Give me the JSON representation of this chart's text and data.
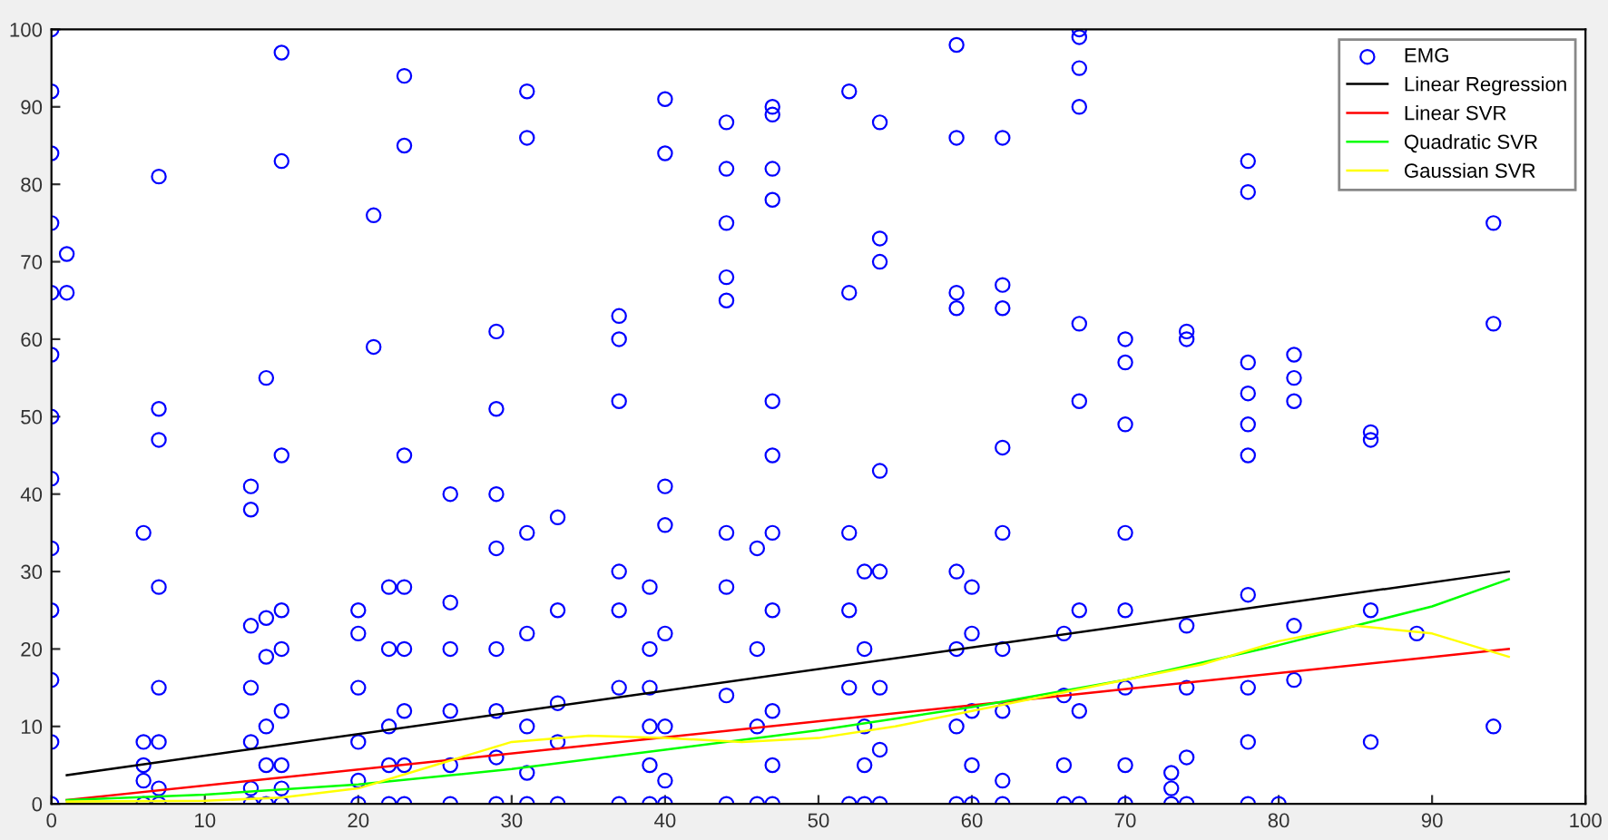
{
  "chart_data": {
    "type": "scatter",
    "xlim": [
      0,
      100
    ],
    "ylim": [
      0,
      100
    ],
    "xticks": [
      0,
      10,
      20,
      30,
      40,
      50,
      60,
      70,
      80,
      90,
      100
    ],
    "yticks": [
      0,
      10,
      20,
      30,
      40,
      50,
      60,
      70,
      80,
      90,
      100
    ],
    "grid": false,
    "legend": "top right",
    "series": [
      {
        "name": "EMG",
        "color": "#0000ff",
        "marker": "circle",
        "x": [
          0,
          0,
          0,
          0,
          0,
          0,
          0,
          0,
          0,
          0,
          0,
          0,
          0,
          1,
          1,
          6,
          6,
          6,
          6,
          6,
          7,
          7,
          7,
          7,
          7,
          7,
          7,
          7,
          13,
          13,
          13,
          13,
          13,
          13,
          13,
          14,
          14,
          14,
          14,
          14,
          14,
          15,
          15,
          15,
          15,
          15,
          15,
          15,
          15,
          15,
          20,
          20,
          20,
          20,
          20,
          20,
          21,
          21,
          22,
          22,
          22,
          22,
          22,
          23,
          23,
          23,
          23,
          23,
          23,
          23,
          23,
          26,
          26,
          26,
          26,
          26,
          26,
          29,
          29,
          29,
          29,
          29,
          29,
          29,
          29,
          31,
          31,
          31,
          31,
          31,
          31,
          31,
          33,
          33,
          33,
          33,
          33,
          37,
          37,
          37,
          37,
          37,
          37,
          37,
          39,
          39,
          39,
          39,
          39,
          39,
          40,
          40,
          40,
          40,
          40,
          40,
          40,
          40,
          44,
          44,
          44,
          44,
          44,
          44,
          44,
          44,
          44,
          46,
          46,
          46,
          46,
          47,
          47,
          47,
          47,
          47,
          47,
          47,
          47,
          47,
          47,
          47,
          52,
          52,
          52,
          52,
          52,
          52,
          53,
          53,
          53,
          53,
          53,
          54,
          54,
          54,
          54,
          54,
          54,
          54,
          54,
          59,
          59,
          59,
          59,
          59,
          59,
          59,
          59,
          60,
          60,
          60,
          60,
          60,
          62,
          62,
          62,
          62,
          62,
          62,
          62,
          62,
          62,
          66,
          66,
          66,
          66,
          67,
          67,
          67,
          67,
          67,
          67,
          67,
          67,
          67,
          70,
          70,
          70,
          70,
          70,
          70,
          70,
          70,
          73,
          73,
          73,
          74,
          74,
          74,
          74,
          74,
          74,
          78,
          78,
          78,
          78,
          78,
          78,
          78,
          78,
          78,
          78,
          80,
          81,
          81,
          81,
          81,
          81,
          86,
          86,
          86,
          86,
          89,
          94,
          94,
          94
        ],
        "values": [
          0,
          8,
          16,
          25,
          33,
          42,
          50,
          58,
          66,
          75,
          84,
          92,
          100,
          71,
          66,
          0,
          3,
          5,
          8,
          35,
          0,
          2,
          8,
          15,
          28,
          47,
          51,
          81,
          0,
          2,
          8,
          15,
          23,
          38,
          41,
          0,
          5,
          10,
          19,
          24,
          55,
          0,
          2,
          5,
          12,
          20,
          25,
          45,
          83,
          97,
          0,
          3,
          8,
          15,
          22,
          25,
          76,
          59,
          0,
          5,
          10,
          20,
          28,
          0,
          5,
          12,
          20,
          28,
          45,
          85,
          94,
          0,
          5,
          12,
          20,
          26,
          40,
          0,
          6,
          12,
          20,
          33,
          40,
          51,
          61,
          0,
          4,
          10,
          22,
          35,
          86,
          92,
          0,
          8,
          13,
          25,
          37,
          0,
          15,
          25,
          30,
          52,
          60,
          63,
          0,
          5,
          10,
          15,
          20,
          28,
          0,
          3,
          10,
          22,
          36,
          41,
          84,
          91,
          0,
          14,
          28,
          35,
          65,
          68,
          75,
          82,
          88,
          0,
          10,
          20,
          33,
          0,
          5,
          12,
          25,
          35,
          45,
          52,
          78,
          82,
          89,
          90,
          0,
          15,
          25,
          35,
          66,
          92,
          0,
          5,
          10,
          20,
          30,
          0,
          7,
          15,
          30,
          43,
          70,
          73,
          88,
          0,
          10,
          20,
          30,
          64,
          66,
          86,
          98,
          0,
          5,
          12,
          22,
          28,
          0,
          3,
          12,
          20,
          35,
          46,
          64,
          67,
          86,
          0,
          5,
          14,
          22,
          0,
          12,
          25,
          52,
          62,
          90,
          95,
          99,
          100,
          0,
          5,
          15,
          25,
          35,
          49,
          57,
          60,
          0,
          2,
          4,
          0,
          6,
          15,
          23,
          60,
          61,
          0,
          8,
          15,
          27,
          45,
          49,
          53,
          57,
          79,
          83,
          0,
          16,
          23,
          52,
          55,
          58,
          8,
          25,
          47,
          48,
          22,
          10,
          62,
          75
        ]
      },
      {
        "name": "Linear Regression",
        "type": "line",
        "color": "#000000",
        "marker": "none",
        "x": [
          1,
          95
        ],
        "values": [
          3.7,
          30
        ]
      },
      {
        "name": "Linear SVR",
        "type": "line",
        "color": "#ff0000",
        "marker": "none",
        "x": [
          1,
          95
        ],
        "values": [
          0.5,
          20
        ]
      },
      {
        "name": "Quadratic SVR",
        "type": "line",
        "color": "#00ff00",
        "marker": "none",
        "x": [
          1,
          10,
          20,
          30,
          40,
          50,
          60,
          70,
          80,
          90,
          95
        ],
        "values": [
          0.5,
          1.2,
          2.5,
          4.5,
          7,
          9.5,
          12.5,
          16,
          20.5,
          25.5,
          29
        ]
      },
      {
        "name": "Gaussian SVR",
        "type": "line",
        "color": "#ffff00",
        "marker": "none",
        "x": [
          1,
          10,
          15,
          20,
          25,
          30,
          35,
          40,
          45,
          50,
          55,
          60,
          65,
          70,
          75,
          80,
          85,
          90,
          95
        ],
        "values": [
          0.3,
          0.4,
          0.8,
          2,
          5,
          8,
          8.8,
          8.5,
          8,
          8.5,
          10,
          12,
          14,
          16,
          18,
          21,
          23,
          22,
          19
        ]
      }
    ]
  }
}
